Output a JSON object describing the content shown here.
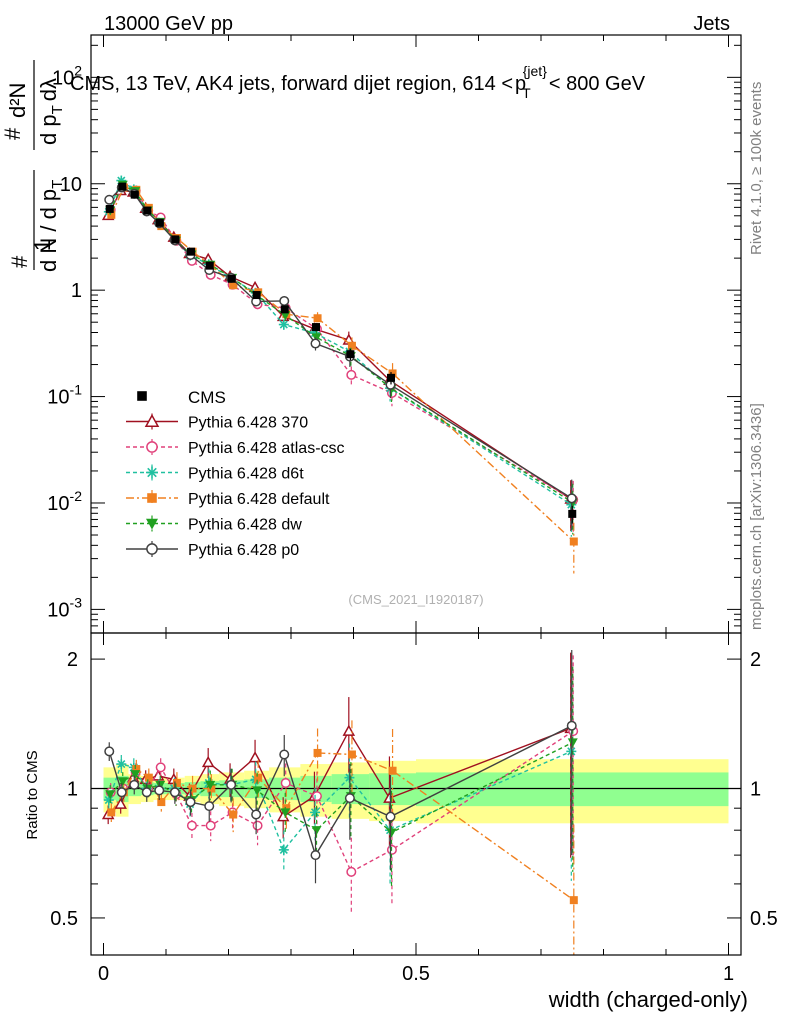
{
  "header": {
    "left": "13000 GeV pp",
    "right": "Jets"
  },
  "side_labels": {
    "top": "Rivet 4.1.0, ≥ 100k events",
    "bottom": "mcplots.cern.ch [arXiv:1306.3436]"
  },
  "chart_data": {
    "type": "line",
    "title": "CMS, 13 TeV, AK4 jets, forward dijet region, 614 < p_T^{jet} < 800 GeV",
    "title_parts": {
      "text": "CMS, 13 TeV, AK4 jets, forward dijet region, 614 <",
      "p": "p",
      "sub": "T",
      "sup": "{jet}",
      "end": "< 800 GeV"
    },
    "watermark": "(CMS_2021_I1920187)",
    "xlabel": "width (charged-only)",
    "ylabel_top": {
      "num_hash": "#",
      "num": "1",
      "den": "d N / d p",
      "den_sub": "T",
      "num2_hash": "#",
      "num2": "d²N",
      "den2": "d p",
      "den2_sub": "T",
      "den2_end": "dλ"
    },
    "ylabel_ratio": "Ratio to CMS",
    "xlim": [
      -0.02,
      1.02
    ],
    "ylim_main": [
      0.0006,
      250
    ],
    "ylim_ratio": [
      0.41,
      2.3
    ],
    "x_ticks": [
      "0",
      "0.5",
      "1"
    ],
    "y_ticks_main": [
      {
        "v": 0.001,
        "base": "10",
        "exp": "-3"
      },
      {
        "v": 0.01,
        "base": "10",
        "exp": "-2"
      },
      {
        "v": 0.1,
        "base": "10",
        "exp": "-1"
      },
      {
        "v": 1,
        "base": "1",
        "exp": ""
      },
      {
        "v": 10,
        "base": "10",
        "exp": ""
      },
      {
        "v": 100,
        "base": "10",
        "exp": "2"
      }
    ],
    "y_ticks_ratio": [
      "0.5",
      "1",
      "2"
    ],
    "x": [
      0.01,
      0.03,
      0.05,
      0.07,
      0.09,
      0.115,
      0.14,
      0.17,
      0.205,
      0.245,
      0.29,
      0.34,
      0.395,
      0.46,
      0.75
    ],
    "band_edges": [
      0.0,
      0.02,
      0.04,
      0.06,
      0.08,
      0.1,
      0.13,
      0.155,
      0.185,
      0.225,
      0.265,
      0.315,
      0.365,
      0.425,
      0.5,
      1.0
    ],
    "band_yellow": [
      0.12,
      0.14,
      0.08,
      0.07,
      0.06,
      0.06,
      0.07,
      0.08,
      0.09,
      0.1,
      0.12,
      0.14,
      0.15,
      0.16,
      0.17
    ],
    "band_green": [
      0.06,
      0.07,
      0.04,
      0.035,
      0.03,
      0.03,
      0.035,
      0.04,
      0.045,
      0.05,
      0.06,
      0.07,
      0.08,
      0.085,
      0.09
    ],
    "data": {
      "name": "CMS",
      "values": [
        5.8,
        9.4,
        7.9,
        5.6,
        4.3,
        3.0,
        2.3,
        1.7,
        1.28,
        0.9,
        0.66,
        0.45,
        0.25,
        0.15,
        0.0079
      ],
      "err": [
        0.3,
        0.4,
        0.3,
        0.25,
        0.2,
        0.15,
        0.12,
        0.1,
        0.08,
        0.06,
        0.05,
        0.04,
        0.03,
        0.02,
        0.0015
      ]
    },
    "series": [
      {
        "name": "Pythia 6.428 370",
        "color": "#a01020",
        "dash": "",
        "marker": "triangle-open",
        "ratio": [
          0.87,
          0.92,
          1.06,
          1.05,
          1.07,
          1.05,
          0.96,
          1.15,
          1.05,
          1.18,
          0.86,
          0.96,
          1.36,
          0.95,
          1.38
        ],
        "rerr": [
          0.05,
          0.05,
          0.05,
          0.05,
          0.05,
          0.06,
          0.07,
          0.08,
          0.09,
          0.1,
          0.11,
          0.14,
          0.2,
          0.25,
          0.5
        ]
      },
      {
        "name": "Pythia 6.428 atlas-csc",
        "color": "#e0407a",
        "dash": "4,3",
        "marker": "circle-open",
        "ratio": [
          0.98,
          1.0,
          1.09,
          1.0,
          1.12,
          0.97,
          0.82,
          0.82,
          0.88,
          0.82,
          1.03,
          0.96,
          0.64,
          0.72,
          1.36
        ],
        "rerr": [
          0.05,
          0.05,
          0.05,
          0.05,
          0.05,
          0.06,
          0.07,
          0.08,
          0.09,
          0.1,
          0.11,
          0.14,
          0.2,
          0.25,
          0.5
        ]
      },
      {
        "name": "Pythia 6.428 d6t",
        "color": "#20c0a0",
        "dash": "4,3",
        "marker": "star",
        "ratio": [
          0.94,
          1.14,
          1.12,
          1.0,
          1.0,
          1.0,
          0.92,
          1.03,
          1.02,
          1.05,
          0.72,
          0.88,
          1.06,
          0.8,
          1.22
        ],
        "rerr": [
          0.05,
          0.05,
          0.05,
          0.05,
          0.05,
          0.06,
          0.07,
          0.08,
          0.09,
          0.1,
          0.11,
          0.14,
          0.2,
          0.25,
          0.5
        ]
      },
      {
        "name": "Pythia 6.428 default",
        "color": "#f08020",
        "dash": "8,3,2,3",
        "marker": "square",
        "ratio": [
          0.88,
          0.98,
          1.11,
          1.06,
          0.93,
          1.03,
          1.0,
          1.0,
          0.87,
          1.06,
          0.9,
          1.21,
          1.2,
          1.1,
          0.55
        ],
        "rerr": [
          0.05,
          0.05,
          0.05,
          0.05,
          0.05,
          0.06,
          0.07,
          0.08,
          0.09,
          0.1,
          0.11,
          0.14,
          0.2,
          0.25,
          0.5
        ]
      },
      {
        "name": "Pythia 6.428 dw",
        "color": "#20a020",
        "dash": "4,3",
        "marker": "triangle-down",
        "ratio": [
          0.97,
          1.04,
          1.08,
          1.0,
          1.02,
          0.97,
          0.94,
          1.02,
          1.02,
          0.99,
          0.88,
          0.8,
          0.96,
          0.79,
          1.28
        ],
        "rerr": [
          0.05,
          0.05,
          0.05,
          0.05,
          0.05,
          0.06,
          0.07,
          0.08,
          0.09,
          0.1,
          0.11,
          0.14,
          0.2,
          0.25,
          0.5
        ]
      },
      {
        "name": "Pythia 6.428 p0",
        "color": "#404040",
        "dash": "",
        "marker": "circle-open",
        "ratio": [
          1.22,
          0.98,
          1.02,
          0.98,
          0.99,
          0.98,
          0.93,
          0.91,
          1.02,
          0.87,
          1.2,
          0.7,
          0.95,
          0.86,
          1.4
        ],
        "rerr": [
          0.05,
          0.05,
          0.05,
          0.05,
          0.05,
          0.06,
          0.07,
          0.08,
          0.09,
          0.1,
          0.11,
          0.14,
          0.2,
          0.25,
          0.5
        ]
      }
    ]
  }
}
